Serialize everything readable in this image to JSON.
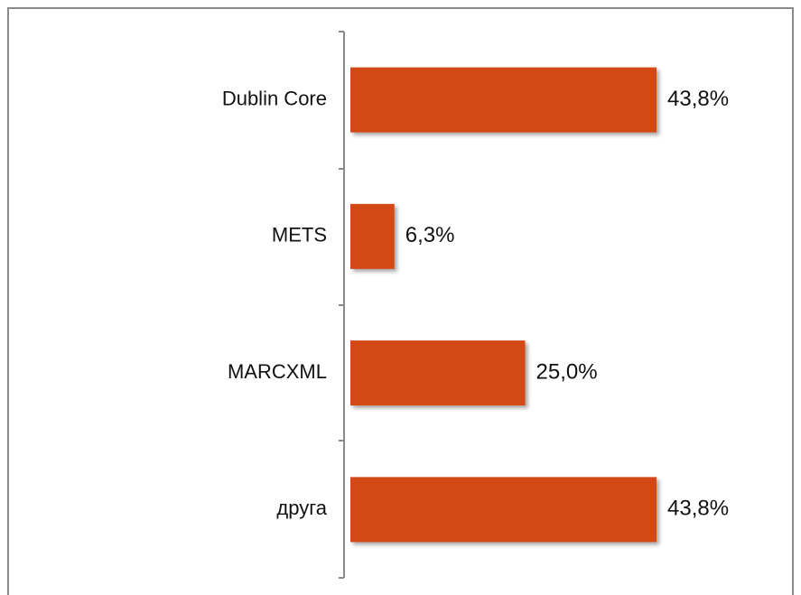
{
  "chart_data": {
    "type": "bar",
    "orientation": "horizontal",
    "categories": [
      "Dublin Core",
      "METS",
      "MARCXML",
      "друга"
    ],
    "values": [
      43.8,
      6.3,
      25.0,
      43.8
    ],
    "value_labels": [
      "43,8%",
      "6,3%",
      "25,0%",
      "43,8%"
    ],
    "color": "#d34817"
  }
}
